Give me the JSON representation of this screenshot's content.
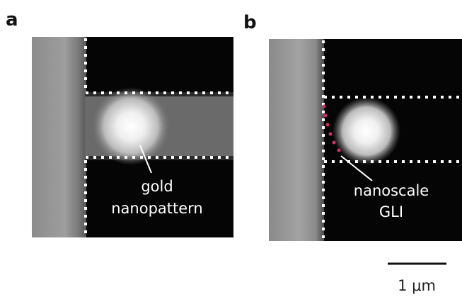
{
  "panels": [
    {
      "label": "a",
      "annotation": [
        "gold",
        "nanopattern"
      ]
    },
    {
      "label": "b",
      "annotation": [
        "nanoscale",
        "GLI"
      ]
    }
  ],
  "scale_bar": {
    "label": "1 μm"
  }
}
